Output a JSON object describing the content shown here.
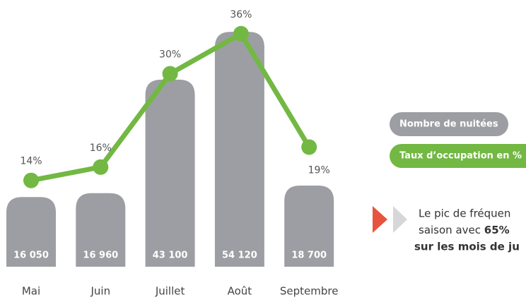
{
  "chart_data": {
    "type": "bar-line",
    "categories": [
      "Mai",
      "Juin",
      "Juillet",
      "Août",
      "Septembre"
    ],
    "series": [
      {
        "name": "Nombre de nuitées",
        "color": "#9d9ea3",
        "values": [
          16050,
          16960,
          43100,
          54120,
          18700
        ],
        "value_labels": [
          "16 050",
          "16 960",
          "43 100",
          "54 120",
          "18 700"
        ]
      },
      {
        "name": "Taux d’occupation en %",
        "color": "#72b843",
        "axis": "y2",
        "values": [
          14,
          16,
          30,
          36,
          19
        ],
        "value_labels": [
          "14%",
          "16%",
          "30%",
          "36%",
          "19%"
        ]
      }
    ],
    "ylim": [
      0,
      60000
    ],
    "y2lim": [
      0,
      40
    ],
    "note": {
      "line1": "Le pic de fréquen",
      "line2": "saison avec",
      "line2_bold": "65%",
      "line3": "sur les mois de ju"
    }
  }
}
